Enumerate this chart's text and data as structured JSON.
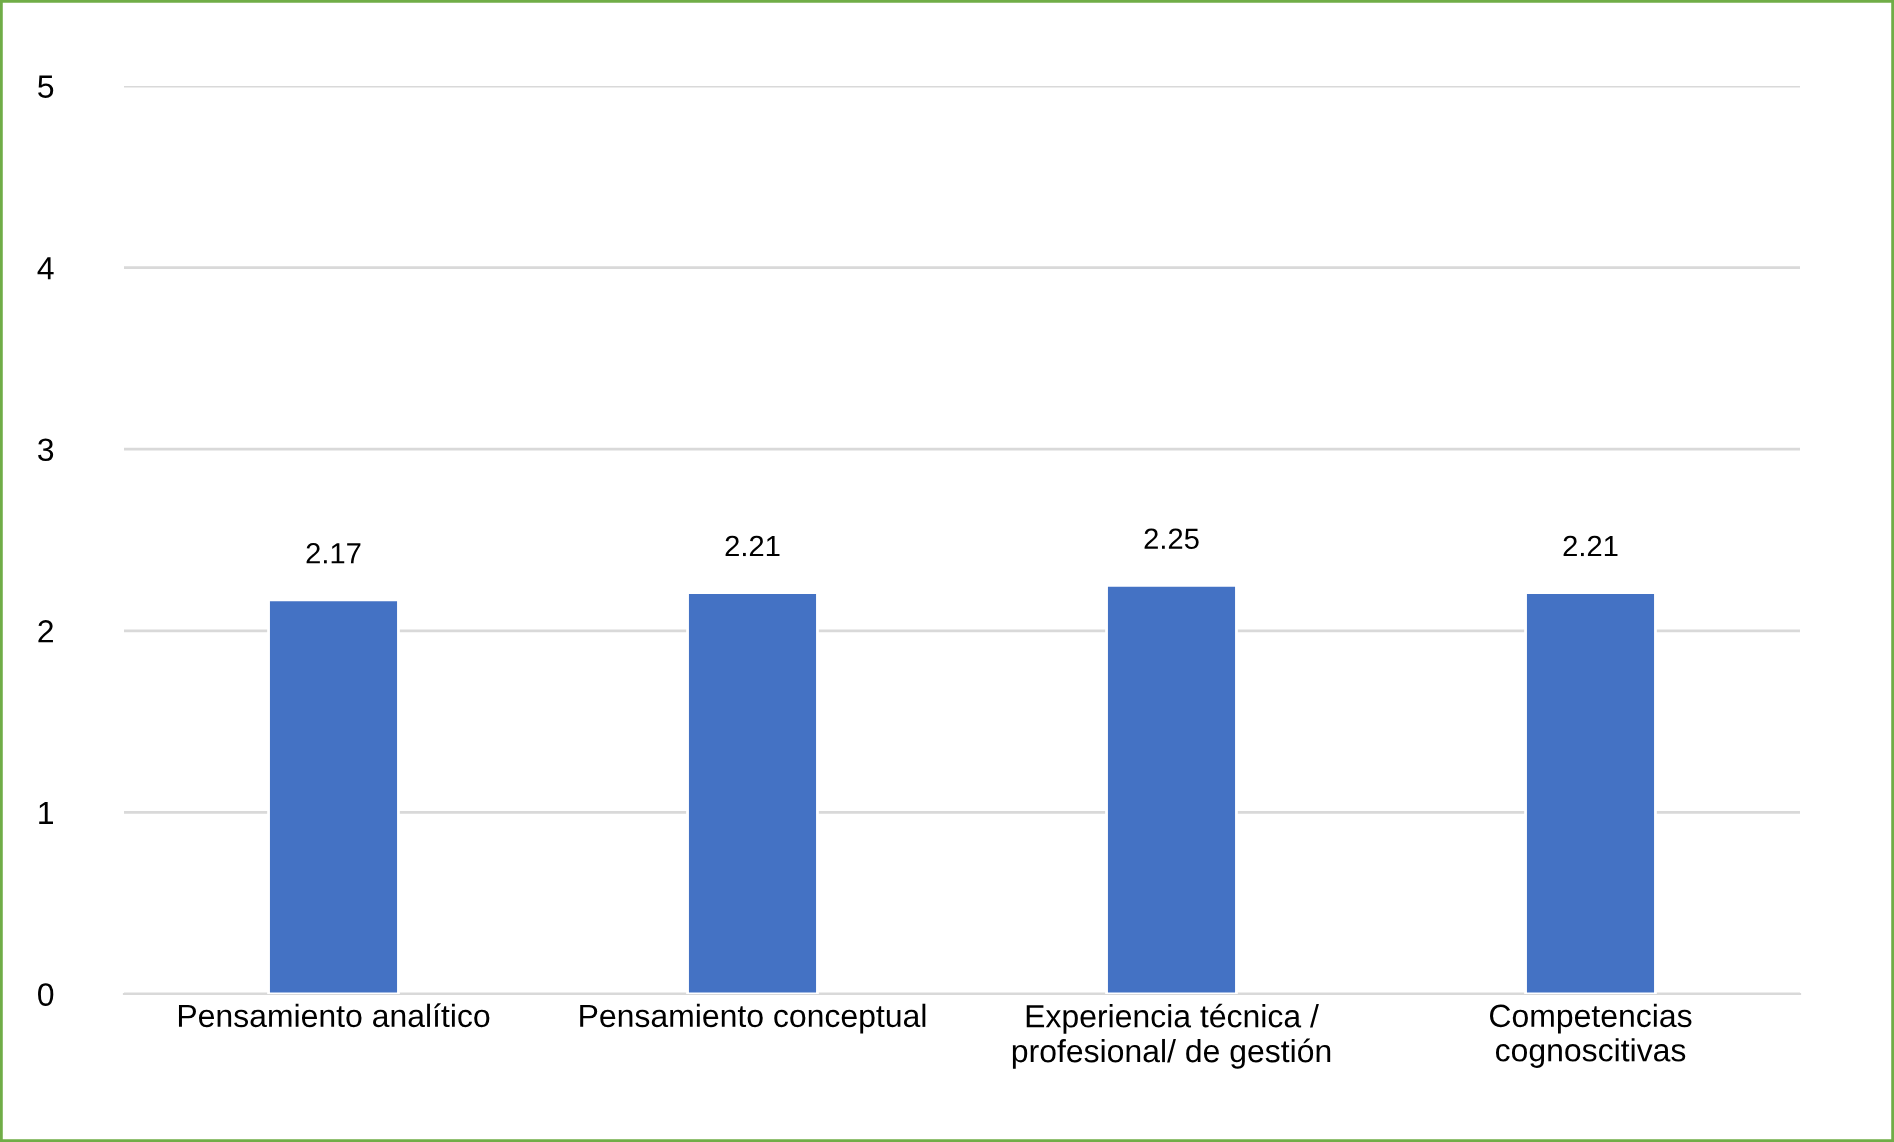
{
  "chart_data": {
    "type": "bar",
    "categories": [
      "Pensamiento analítico",
      "Pensamiento conceptual",
      "Experiencia técnica /\nprofesional/ de gestión",
      "Competencias\ncognoscitivas"
    ],
    "values": [
      2.17,
      2.21,
      2.25,
      2.21
    ],
    "color": "#4472c4",
    "ylim": [
      0,
      5
    ],
    "yticks": [
      0,
      1,
      2,
      3,
      4,
      5
    ],
    "grid": "y",
    "data_labels": true,
    "legend": false
  }
}
